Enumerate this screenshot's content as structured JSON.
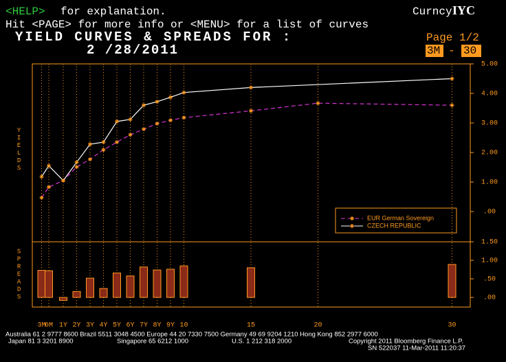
{
  "header": {
    "help_key": "<HELP>",
    "help_text": "for explanation.",
    "line2": "Hit <PAGE> for more info or <MENU> for a list of curves",
    "market": "Curncy",
    "function": "IYC",
    "title": "YIELD CURVES & SPREADS FOR :",
    "date": "2 /28/2011",
    "page": "Page  1/2",
    "range_from": "3M",
    "range_sep": "-",
    "range_to": "30"
  },
  "chart_data": [
    {
      "type": "line",
      "y_label": "YIELDS",
      "ylim": [
        -1,
        5
      ],
      "yticks": [
        {
          "value": 0,
          "label": ".00"
        },
        {
          "value": 1,
          "label": "1.00"
        },
        {
          "value": 2,
          "label": "2.00"
        },
        {
          "value": 3,
          "label": "3.00"
        },
        {
          "value": 4,
          "label": "4.00"
        },
        {
          "value": 5,
          "label": "5.00"
        }
      ],
      "xlim": [
        0,
        30
      ],
      "xticks": [
        {
          "value": 0.25,
          "label": "3M"
        },
        {
          "value": 0.5,
          "label": "6M"
        },
        {
          "value": 1,
          "label": "1Y"
        },
        {
          "value": 2,
          "label": "2Y"
        },
        {
          "value": 3,
          "label": "3Y"
        },
        {
          "value": 4,
          "label": "4Y"
        },
        {
          "value": 5,
          "label": "5Y"
        },
        {
          "value": 6,
          "label": "6Y"
        },
        {
          "value": 7,
          "label": "7Y"
        },
        {
          "value": 8,
          "label": "8Y"
        },
        {
          "value": 9,
          "label": "9Y"
        },
        10,
        15,
        20,
        30
      ],
      "grid": true,
      "series": [
        {
          "name": "EUR German Sovereign",
          "color": "#d633d6",
          "marker_color": "#ff9a1f",
          "dash": true,
          "x": [
            0.25,
            0.5,
            1,
            2,
            3,
            4,
            5,
            6,
            7,
            8,
            9,
            10,
            15,
            20,
            30
          ],
          "values": [
            0.47,
            0.83,
            1.05,
            1.51,
            1.77,
            2.09,
            2.35,
            2.6,
            2.79,
            2.98,
            3.09,
            3.18,
            3.41,
            3.67,
            3.6
          ]
        },
        {
          "name": "CZECH REPUBLIC",
          "color": "#ffffff",
          "marker_color": "#ff9a1f",
          "dash": false,
          "x": [
            0.25,
            0.5,
            1,
            2,
            3,
            4,
            5,
            6,
            7,
            8,
            9,
            10,
            15,
            30
          ],
          "values": [
            1.18,
            1.55,
            1.05,
            1.67,
            2.28,
            2.35,
            3.05,
            3.12,
            3.6,
            3.72,
            3.87,
            4.03,
            4.2,
            4.5
          ]
        }
      ]
    },
    {
      "type": "bar",
      "y_label": "SPREADS",
      "color": "#8a2a18",
      "edge": "#ff9a1f",
      "ylim": [
        -0.25,
        1.5
      ],
      "yticks": [
        {
          "value": 0,
          "label": ".00"
        },
        {
          "value": 0.5,
          "label": ".50"
        },
        {
          "value": 1,
          "label": "1.00"
        },
        {
          "value": 1.5,
          "label": "1.50"
        }
      ],
      "x": [
        0.25,
        0.5,
        1,
        2,
        3,
        4,
        5,
        6,
        7,
        8,
        9,
        10,
        15,
        30
      ],
      "values": [
        0.73,
        0.72,
        -0.08,
        0.16,
        0.52,
        0.24,
        0.66,
        0.58,
        0.82,
        0.74,
        0.76,
        0.85,
        0.8,
        0.89
      ]
    }
  ],
  "footer": {
    "line1": "Australia 61 2 9777 8600 Brazil 5511 3048 4500 Europe 44 20 7330 7500 Germany 49 69 9204 1210 Hong Kong 852 2977 6000",
    "japan": "Japan 81 3 3201 8900",
    "singapore": "Singapore 65 6212 1000",
    "us": "U.S. 1 212 318 2000",
    "copyright": "Copyright 2011 Bloomberg Finance L.P.",
    "sn": "SN 522037 11-Mar-2011 11:20:37"
  }
}
